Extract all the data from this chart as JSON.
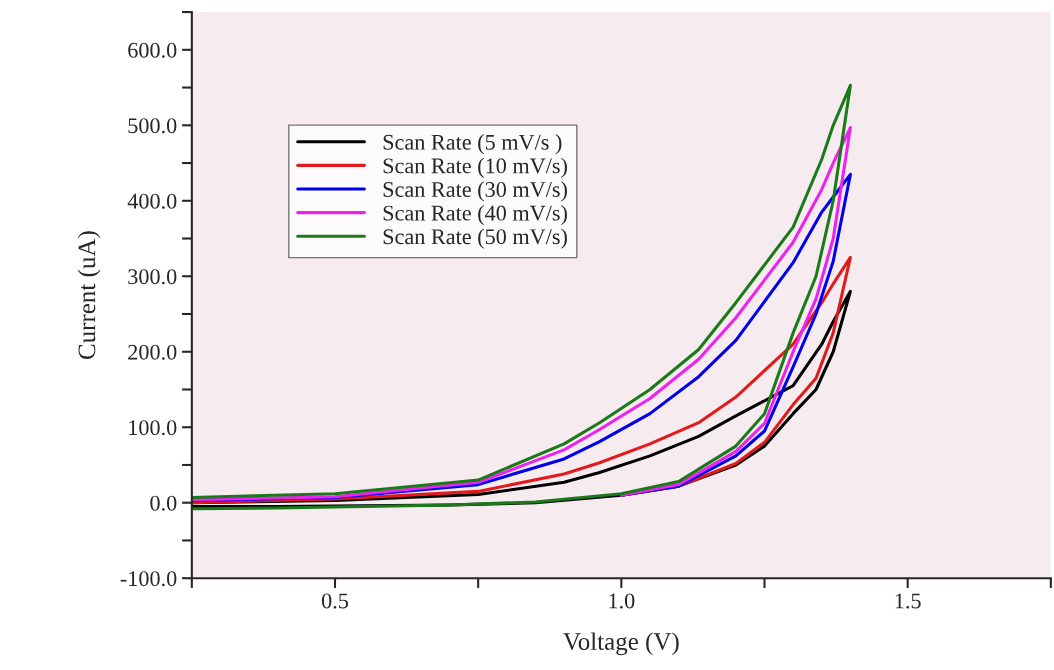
{
  "chart_data": {
    "type": "line",
    "xlabel": "Voltage (V)",
    "ylabel": "Current (uA)",
    "xlim": [
      0.25,
      1.75
    ],
    "ylim": [
      -100,
      650
    ],
    "xticks": [
      {
        "value": 0.25,
        "label": null
      },
      {
        "value": 0.5,
        "label": "0.5"
      },
      {
        "value": 0.75,
        "label": null
      },
      {
        "value": 1.0,
        "label": "1.0"
      },
      {
        "value": 1.25,
        "label": null
      },
      {
        "value": 1.5,
        "label": "1.5"
      },
      {
        "value": 1.75,
        "label": null
      }
    ],
    "yticks": [
      {
        "value": -100,
        "label": "-100.0"
      },
      {
        "value": -50,
        "label": null
      },
      {
        "value": 0,
        "label": "0.0"
      },
      {
        "value": 50,
        "label": null
      },
      {
        "value": 100,
        "label": "100.0"
      },
      {
        "value": 150,
        "label": null
      },
      {
        "value": 200,
        "label": "200.0"
      },
      {
        "value": 250,
        "label": null
      },
      {
        "value": 300,
        "label": "300.0"
      },
      {
        "value": 350,
        "label": null
      },
      {
        "value": 400,
        "label": "400.0"
      },
      {
        "value": 450,
        "label": null
      },
      {
        "value": 500,
        "label": "500.0"
      },
      {
        "value": 550,
        "label": null
      },
      {
        "value": 600,
        "label": "600.0"
      },
      {
        "value": 650,
        "label": null
      }
    ],
    "grid": false,
    "legend": "top left",
    "marker": "none",
    "line_style": "solid",
    "series": [
      {
        "name": "Scan Rate (5 mV/s )",
        "color": "#000000",
        "x": [
          0.25,
          0.4,
          0.55,
          0.7,
          0.85,
          1.0,
          1.1,
          1.2,
          1.25,
          1.3,
          1.34,
          1.37,
          1.4,
          1.37,
          1.35,
          1.3,
          1.2,
          1.135,
          1.05,
          0.962,
          0.9,
          0.75,
          0.5,
          0.25
        ],
        "values": [
          -5,
          -5,
          -4,
          -3,
          0,
          10,
          22,
          50,
          75,
          118,
          150,
          200,
          280,
          240,
          210,
          155,
          115,
          88,
          62,
          40,
          27,
          11,
          3,
          0
        ]
      },
      {
        "name": "Scan Rate (10 mV/s)",
        "color": "#e31a1c",
        "x": [
          1.0,
          1.1,
          1.2,
          1.25,
          1.3,
          1.34,
          1.37,
          1.4,
          1.37,
          1.35,
          1.3,
          1.2,
          1.135,
          1.05,
          0.962,
          0.9,
          0.75,
          0.5,
          0.25
        ],
        "values": [
          10,
          22,
          52,
          80,
          130,
          165,
          225,
          325,
          290,
          265,
          210,
          140,
          106,
          78,
          53,
          38,
          15,
          5,
          0
        ]
      },
      {
        "name": "Scan Rate (30 mV/s)",
        "color": "#0000ee",
        "x": [
          1.0,
          1.1,
          1.2,
          1.25,
          1.3,
          1.34,
          1.37,
          1.4,
          1.37,
          1.35,
          1.3,
          1.2,
          1.135,
          1.05,
          0.962,
          0.9,
          0.75,
          0.5,
          0.25
        ],
        "values": [
          10,
          22,
          62,
          95,
          180,
          250,
          320,
          435,
          405,
          385,
          318,
          215,
          167,
          118,
          81,
          58,
          24,
          7,
          3
        ]
      },
      {
        "name": "Scan Rate (40 mV/s)",
        "color": "#ee22ee",
        "x": [
          1.0,
          1.1,
          1.2,
          1.25,
          1.3,
          1.34,
          1.37,
          1.4,
          1.37,
          1.35,
          1.3,
          1.2,
          1.135,
          1.05,
          0.962,
          0.9,
          0.75,
          0.5,
          0.25
        ],
        "values": [
          10,
          24,
          68,
          105,
          200,
          270,
          350,
          497,
          450,
          415,
          345,
          245,
          190,
          138,
          97,
          70,
          27,
          8,
          4
        ]
      },
      {
        "name": "Scan Rate (50 mV/s)",
        "color": "#1a7a1a",
        "x": [
          0.25,
          0.4,
          0.55,
          0.7,
          0.85,
          1.0,
          1.1,
          1.2,
          1.25,
          1.3,
          1.34,
          1.37,
          1.4,
          1.37,
          1.35,
          1.3,
          1.2,
          1.135,
          1.05,
          0.962,
          0.9,
          0.75,
          0.5,
          0.25
        ],
        "values": [
          -8,
          -7,
          -5,
          -3,
          1,
          12,
          28,
          75,
          118,
          225,
          300,
          400,
          553,
          500,
          455,
          365,
          265,
          203,
          150,
          106,
          78,
          30,
          12,
          7
        ]
      }
    ]
  }
}
